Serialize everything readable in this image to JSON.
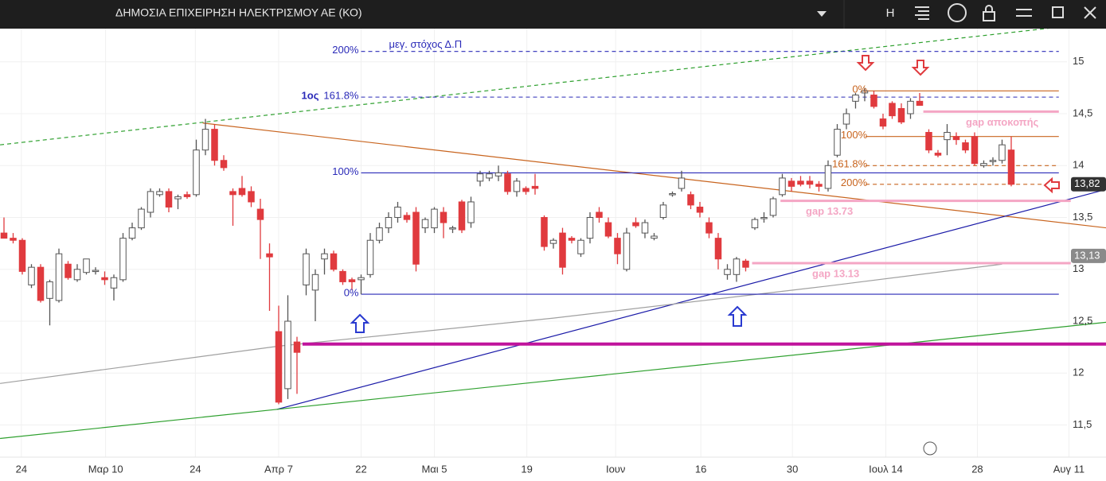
{
  "header": {
    "title": "ΔΗΜΟΣΙΑ ΕΠΙΧΕΙΡΗΣΗ ΗΛΕΚΤΡΙΣΜΟΥ ΑΕ (ΚΟ)",
    "button": "H"
  },
  "chart_data": {
    "type": "candlestick",
    "open": [
      13.35,
      13.3,
      13.28,
      12.85,
      13.02,
      12.72,
      12.7,
      13.05,
      12.9,
      12.97,
      12.98,
      12.92,
      12.82,
      12.9,
      13.3,
      13.4,
      13.55,
      13.72,
      13.75,
      13.68,
      13.72,
      13.72,
      14.15,
      14.35,
      14.05,
      13.75,
      13.78,
      13.75,
      13.58,
      13.15,
      12.4,
      11.85,
      12.3,
      12.85,
      12.8,
      13.1,
      13.15,
      12.98,
      12.9,
      12.9,
      12.95,
      13.28,
      13.4,
      13.5,
      13.52,
      13.55,
      13.4,
      13.4,
      13.55,
      13.4,
      13.65,
      13.45,
      13.85,
      13.88,
      13.9,
      13.92,
      13.75,
      13.78,
      13.8,
      13.5,
      13.25,
      13.35,
      13.3,
      13.15,
      13.3,
      13.55,
      13.45,
      13.3,
      13.0,
      13.45,
      13.35,
      13.3,
      13.5,
      13.72,
      13.78,
      13.72,
      13.6,
      13.45,
      13.3,
      12.95,
      12.95,
      13.08,
      13.4,
      13.5,
      13.52,
      13.72,
      13.85,
      13.85,
      13.85,
      13.82,
      13.78,
      14.1,
      14.4,
      14.62,
      14.7,
      14.68,
      14.45,
      14.6,
      14.55,
      14.5,
      14.62,
      14.32,
      14.12,
      14.25,
      14.28,
      14.22,
      14.28,
      14.0,
      14.05,
      14.05,
      14.15
    ],
    "high": [
      13.5,
      13.35,
      13.3,
      13.05,
      13.05,
      12.9,
      13.2,
      13.08,
      13.05,
      13.1,
      13.02,
      12.98,
      12.95,
      13.35,
      13.45,
      13.6,
      13.78,
      13.78,
      13.78,
      13.72,
      13.75,
      14.25,
      14.45,
      14.4,
      14.1,
      13.78,
      13.9,
      13.8,
      13.68,
      13.25,
      12.65,
      12.75,
      12.35,
      13.2,
      13.0,
      13.2,
      13.18,
      13.0,
      12.92,
      12.95,
      13.35,
      13.45,
      13.55,
      13.65,
      13.55,
      13.6,
      13.5,
      13.6,
      13.6,
      13.42,
      13.67,
      13.7,
      13.95,
      13.95,
      14.0,
      13.95,
      13.88,
      13.8,
      13.92,
      13.52,
      13.3,
      13.4,
      13.32,
      13.3,
      13.55,
      13.6,
      13.5,
      13.35,
      13.4,
      13.5,
      13.48,
      13.35,
      13.65,
      13.75,
      13.95,
      13.75,
      13.65,
      13.5,
      13.35,
      13.05,
      13.12,
      13.1,
      13.5,
      13.55,
      13.7,
      13.92,
      13.88,
      13.9,
      13.9,
      13.85,
      14.05,
      14.4,
      14.55,
      14.7,
      14.75,
      14.72,
      14.5,
      14.62,
      14.6,
      14.65,
      14.7,
      14.35,
      14.15,
      14.4,
      14.32,
      14.25,
      14.32,
      14.05,
      14.08,
      14.25,
      14.28
    ],
    "low": [
      13.3,
      13.25,
      12.95,
      12.82,
      12.68,
      12.46,
      12.68,
      12.9,
      12.88,
      12.95,
      12.95,
      12.85,
      12.7,
      12.88,
      13.28,
      13.38,
      13.5,
      13.7,
      13.55,
      13.58,
      13.68,
      13.7,
      14.1,
      14.0,
      13.95,
      13.42,
      13.7,
      13.6,
      13.1,
      12.6,
      11.7,
      11.75,
      11.8,
      12.75,
      12.5,
      12.95,
      12.98,
      12.85,
      12.8,
      12.76,
      12.92,
      13.25,
      13.35,
      13.45,
      13.45,
      12.98,
      13.35,
      13.35,
      13.3,
      13.35,
      13.35,
      13.4,
      13.8,
      13.85,
      13.85,
      13.72,
      13.7,
      13.72,
      13.72,
      13.18,
      13.2,
      12.95,
      13.25,
      13.12,
      13.25,
      13.45,
      13.3,
      13.05,
      12.98,
      13.4,
      13.3,
      13.28,
      13.48,
      13.7,
      13.75,
      13.58,
      13.5,
      13.3,
      13.0,
      12.9,
      12.88,
      12.98,
      13.38,
      13.45,
      13.5,
      13.7,
      13.75,
      13.8,
      13.78,
      13.75,
      13.75,
      14.08,
      14.35,
      14.55,
      14.62,
      14.55,
      14.35,
      14.45,
      14.4,
      14.45,
      14.58,
      14.12,
      14.08,
      14.1,
      14.2,
      14.12,
      14.0,
      13.98,
      14.0,
      14.02,
      13.8
    ],
    "close": [
      13.3,
      13.28,
      12.98,
      13.02,
      12.7,
      12.88,
      13.15,
      12.92,
      13.0,
      13.1,
      12.99,
      12.9,
      12.92,
      13.3,
      13.4,
      13.58,
      13.75,
      13.75,
      13.6,
      13.7,
      13.7,
      14.15,
      14.35,
      14.05,
      13.98,
      13.72,
      13.72,
      13.65,
      13.48,
      13.12,
      11.72,
      12.5,
      12.2,
      13.15,
      12.95,
      13.15,
      13.0,
      12.88,
      12.88,
      12.92,
      13.28,
      13.4,
      13.5,
      13.6,
      13.48,
      13.05,
      13.48,
      13.58,
      13.45,
      13.4,
      13.38,
      13.65,
      13.92,
      13.92,
      13.93,
      13.75,
      13.85,
      13.75,
      13.78,
      13.22,
      13.28,
      13.02,
      13.28,
      13.28,
      13.5,
      13.5,
      13.32,
      13.15,
      13.35,
      13.42,
      13.45,
      13.32,
      13.62,
      13.73,
      13.88,
      13.62,
      13.55,
      13.35,
      13.1,
      13.0,
      13.1,
      13.02,
      13.48,
      13.5,
      13.68,
      13.88,
      13.8,
      13.82,
      13.82,
      13.8,
      14.0,
      14.35,
      14.5,
      14.68,
      14.72,
      14.57,
      14.38,
      14.48,
      14.42,
      14.62,
      14.58,
      14.15,
      14.1,
      14.32,
      14.25,
      14.15,
      14.02,
      14.02,
      14.05,
      14.2,
      13.82
    ],
    "up_color": "#ffffff",
    "down_color": "#e03a3e",
    "xlim": [
      -0.435,
      120.35
    ],
    "xticks": [
      {
        "value": 1.9,
        "label": "24"
      },
      {
        "value": 11.1,
        "label": "Μαρ 10"
      },
      {
        "value": 20.9,
        "label": "24"
      },
      {
        "value": 30,
        "label": "Απρ 7"
      },
      {
        "value": 39,
        "label": "22"
      },
      {
        "value": 47,
        "label": "Μαι 5"
      },
      {
        "value": 57.1,
        "label": "19"
      },
      {
        "value": 66.8,
        "label": "Ιουν"
      },
      {
        "value": 76.1,
        "label": "16"
      },
      {
        "value": 86.1,
        "label": "30"
      },
      {
        "value": 96.3,
        "label": "Ιουλ 14"
      },
      {
        "value": 106.3,
        "label": "28"
      },
      {
        "value": 116.3,
        "label": "Αυγ 11"
      }
    ],
    "ylim": [
      11.19,
      15.32
    ],
    "yticks": [
      {
        "value": 11.5,
        "label": "11,5"
      },
      12,
      {
        "value": 12.5,
        "label": "12,5"
      },
      13,
      {
        "value": 13.5,
        "label": "13,5"
      },
      14,
      {
        "value": 14.5,
        "label": "14,5"
      },
      15
    ],
    "grid": true,
    "price_tags": [
      {
        "value": 13.82,
        "label": "13,82",
        "color": "#333333"
      },
      {
        "value": 13.13,
        "label": "13,13",
        "color": "#8a8a8a"
      }
    ],
    "target_label": "μεγ. στόχος Δ.Π",
    "fib_levels": [
      {
        "value": 15.1,
        "label": "200%",
        "dash": true,
        "span": [
          39,
          115.2
        ]
      },
      {
        "value": 14.66,
        "label": "161.8%",
        "prefix": "1ος",
        "dash": true,
        "span": [
          39,
          115.2
        ]
      },
      {
        "value": 13.93,
        "label": "100%",
        "dash": false,
        "span": [
          39,
          115.2
        ]
      },
      {
        "value": 12.76,
        "label": "0%",
        "dash": false,
        "span": [
          39,
          115.2
        ]
      }
    ],
    "fib_color": "#2a2ab8",
    "fib_levels_2": [
      {
        "value": 14.72,
        "label": "0%",
        "dash": false,
        "span": [
          94.1,
          115.2
        ]
      },
      {
        "value": 14.28,
        "label": "100%",
        "dash": false,
        "span": [
          94.1,
          115.2
        ]
      },
      {
        "value": 14.0,
        "label": "161.8%",
        "dash": true,
        "span": [
          94.1,
          115.2
        ]
      },
      {
        "value": 13.82,
        "label": "200%",
        "dash": true,
        "span": [
          94.1,
          115.2
        ]
      }
    ],
    "fib_color_2": "#c8641e",
    "gaps": [
      {
        "value": 14.52,
        "label": "gap αποκοπής",
        "span": [
          100.4,
          115.2
        ]
      },
      {
        "value": 13.66,
        "label": "gap 13.73",
        "span": [
          84.8,
          116.5
        ]
      },
      {
        "value": 13.06,
        "label": "gap 13.13",
        "span": [
          81.7,
          116.5
        ]
      }
    ],
    "gap_color": "#f4a6c4",
    "support": {
      "value": 12.28,
      "span": [
        32.6,
        120.35
      ],
      "color": "#c0149c"
    },
    "trendlines": [
      {
        "color": "#2ea02e",
        "dash": true,
        "points": [
          [
            -0.43,
            14.2
          ],
          [
            114.8,
            15.33
          ]
        ]
      },
      {
        "color": "#c8641e",
        "dash": false,
        "points": [
          [
            21.7,
            14.41
          ],
          [
            120.35,
            13.4
          ]
        ]
      },
      {
        "color": "#1a1aa8",
        "dash": false,
        "points": [
          [
            29.8,
            11.65
          ],
          [
            120.35,
            13.77
          ]
        ]
      },
      {
        "color": "#2ea02e",
        "dash": false,
        "points": [
          [
            -0.43,
            11.37
          ],
          [
            120.35,
            12.49
          ]
        ]
      },
      {
        "color": "#a0a0a0",
        "dash": false,
        "points": [
          [
            -0.43,
            11.9
          ],
          [
            30,
            12.26
          ],
          [
            60,
            12.53
          ],
          [
            90,
            12.84
          ],
          [
            109,
            13.05
          ]
        ]
      }
    ]
  }
}
